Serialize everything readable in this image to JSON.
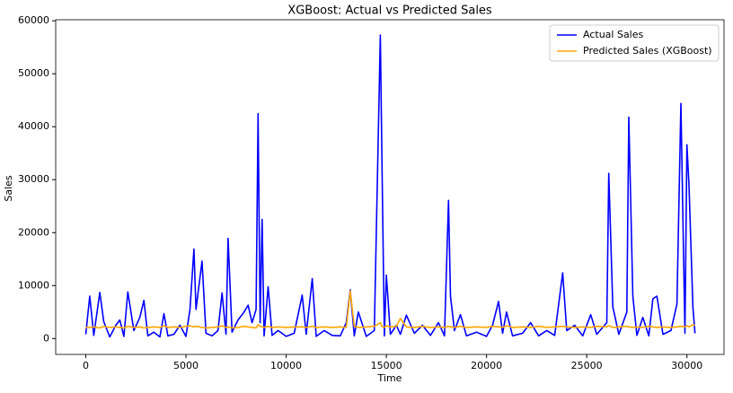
{
  "chart_data": {
    "type": "line",
    "title": "XGBoost: Actual vs Predicted Sales",
    "xlabel": "Time",
    "ylabel": "Sales",
    "x": [
      0,
      200,
      400,
      700,
      900,
      1200,
      1500,
      1700,
      1900,
      2100,
      2400,
      2700,
      2900,
      3100,
      3400,
      3700,
      3900,
      4100,
      4400,
      4700,
      5000,
      5200,
      5400,
      5500,
      5800,
      6000,
      6300,
      6600,
      6800,
      7000,
      7100,
      7300,
      7600,
      7900,
      8100,
      8300,
      8500,
      8600,
      8700,
      8800,
      8900,
      9100,
      9300,
      9600,
      10000,
      10400,
      10800,
      11000,
      11300,
      11500,
      11900,
      12300,
      12700,
      13000,
      13200,
      13400,
      13600,
      14000,
      14400,
      14700,
      14800,
      14900,
      15000,
      15200,
      15500,
      15700,
      16000,
      16400,
      16800,
      17200,
      17600,
      17900,
      18100,
      18200,
      18400,
      18700,
      19000,
      19500,
      20000,
      20300,
      20600,
      20800,
      21000,
      21300,
      21800,
      22200,
      22600,
      23000,
      23400,
      23800,
      24000,
      24400,
      24800,
      25200,
      25500,
      26000,
      26100,
      26300,
      26600,
      27000,
      27100,
      27300,
      27500,
      27800,
      28100,
      28300,
      28500,
      28800,
      29200,
      29500,
      29700,
      29900,
      30000,
      30100,
      30300,
      30400
    ],
    "series": [
      {
        "name": "Actual Sales",
        "color": "#0000ff",
        "values": [
          800,
          8000,
          600,
          8700,
          3200,
          300,
          2500,
          3500,
          400,
          8800,
          1500,
          4000,
          7200,
          500,
          1200,
          300,
          4700,
          500,
          800,
          2500,
          400,
          5500,
          16900,
          5500,
          14600,
          1000,
          500,
          1500,
          8600,
          800,
          18900,
          1200,
          3500,
          5000,
          6300,
          3000,
          5500,
          42500,
          3000,
          22500,
          500,
          9800,
          600,
          1500,
          400,
          1000,
          8200,
          800,
          11300,
          400,
          1500,
          600,
          500,
          3000,
          9200,
          500,
          5000,
          400,
          1500,
          57300,
          28500,
          500,
          12000,
          800,
          2500,
          800,
          4400,
          1000,
          2500,
          600,
          3000,
          500,
          26100,
          8000,
          1500,
          4500,
          500,
          1200,
          400,
          2500,
          7000,
          1000,
          5000,
          500,
          1000,
          3000,
          500,
          1500,
          600,
          12400,
          1500,
          2500,
          500,
          4500,
          800,
          3000,
          31200,
          6000,
          800,
          5000,
          41800,
          8000,
          600,
          4000,
          500,
          7500,
          8000,
          800,
          1500,
          6500,
          44400,
          1000,
          36600,
          29000,
          5800,
          1000
        ]
      },
      {
        "name": "Predicted Sales (XGBoost)",
        "color": "#ffa500",
        "values": [
          2100,
          2100,
          2200,
          2000,
          2300,
          2100,
          2200,
          2100,
          2000,
          2300,
          2100,
          2200,
          2000,
          2100,
          2200,
          2100,
          2400,
          2100,
          2200,
          2100,
          2300,
          2400,
          2200,
          2300,
          2100,
          2000,
          2100,
          2200,
          2400,
          2100,
          2200,
          2000,
          2100,
          2300,
          2200,
          2100,
          2000,
          2600,
          2300,
          2200,
          2100,
          2300,
          2100,
          2200,
          2100,
          2200,
          2200,
          2100,
          2300,
          2100,
          2200,
          2100,
          2200,
          2100,
          9000,
          2300,
          2100,
          2200,
          2300,
          3000,
          2200,
          2100,
          2400,
          2200,
          2300,
          3800,
          2200,
          2100,
          2300,
          2100,
          2200,
          2100,
          2300,
          2200,
          2100,
          2300,
          2100,
          2200,
          2100,
          2300,
          2200,
          2100,
          2400,
          2100,
          2200,
          2100,
          2300,
          2100,
          2200,
          2300,
          2200,
          2100,
          2200,
          2100,
          2300,
          2200,
          2400,
          2100,
          2200,
          2300,
          2200,
          2100,
          2200,
          2100,
          2300,
          2200,
          2100,
          2200,
          2100,
          2200,
          2300,
          2200,
          2400,
          2200,
          2600,
          2500
        ]
      }
    ],
    "xlim": [
      -1500,
      31850
    ],
    "ylim": [
      -3000,
      60200
    ],
    "xticks": [
      0,
      5000,
      10000,
      15000,
      20000,
      25000,
      30000
    ],
    "yticks": [
      0,
      10000,
      20000,
      30000,
      40000,
      50000,
      60000
    ],
    "legend": "upper right"
  }
}
